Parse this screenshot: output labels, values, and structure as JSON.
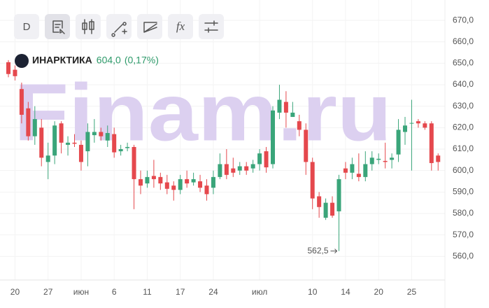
{
  "toolbar": {
    "period": "D",
    "function": "fx"
  },
  "chart_data": {
    "type": "candlestick",
    "ticker": "ИНАРКТИКА",
    "price": "604,0",
    "change": "(0,17%)",
    "watermark": "Finam.ru",
    "categories": [
      null,
      "20",
      null,
      null,
      null,
      null,
      "27",
      null,
      null,
      null,
      null,
      "июн",
      null,
      null,
      null,
      null,
      "6",
      null,
      null,
      null,
      null,
      "11",
      null,
      null,
      null,
      null,
      "17",
      null,
      null,
      null,
      null,
      "24",
      null,
      null,
      null,
      null,
      null,
      null,
      "июл",
      null,
      null,
      null,
      null,
      null,
      null,
      null,
      "10",
      null,
      null,
      null,
      null,
      "14",
      null,
      null,
      null,
      null,
      "20",
      null,
      null,
      null,
      null,
      "25",
      null,
      null,
      null,
      null
    ],
    "open": [
      650.5,
      647,
      638,
      629,
      616,
      620,
      604,
      607,
      622,
      612,
      613,
      612,
      609,
      616.5,
      618,
      614,
      617,
      609,
      610.5,
      611,
      596,
      594,
      597.5,
      597,
      594.5,
      593,
      591,
      596,
      594.5,
      595,
      593,
      592,
      597,
      603,
      601,
      600,
      602,
      601,
      603,
      609,
      603,
      627,
      632,
      625,
      623,
      619,
      604,
      588,
      578,
      585,
      581,
      601,
      599,
      598.5,
      597,
      603,
      605,
      604.5,
      605,
      607.5,
      618,
      622,
      623,
      622,
      622,
      607
    ],
    "high": [
      651.5,
      649,
      641,
      632,
      630,
      624,
      613,
      623,
      623,
      616,
      617,
      614,
      622,
      624,
      620,
      621,
      620,
      612,
      613,
      612,
      600,
      600,
      605,
      599,
      598,
      595,
      598,
      600,
      599,
      598,
      596,
      600,
      608,
      610,
      606,
      604,
      604,
      605,
      610,
      611,
      630,
      640,
      637,
      632,
      626,
      622,
      606,
      590,
      587,
      588,
      598,
      604,
      606,
      608,
      609,
      609,
      608,
      613,
      608,
      624,
      625,
      633,
      624,
      623,
      623,
      608
    ],
    "low": [
      643.5,
      642,
      622,
      614,
      612,
      602,
      596,
      603,
      608,
      607,
      611,
      600,
      602,
      613,
      614,
      611,
      606,
      607,
      609,
      582,
      589,
      592,
      592,
      591,
      589,
      586,
      589,
      592,
      593,
      590,
      586,
      589,
      596,
      596,
      597,
      598,
      598,
      599,
      600,
      599,
      601,
      624,
      620,
      625,
      616,
      598,
      582,
      578,
      577,
      578,
      562.5,
      596,
      596,
      595,
      595,
      600,
      603,
      601,
      601,
      604,
      612,
      600,
      620,
      619,
      600,
      600
    ],
    "close": [
      645,
      644,
      626,
      616,
      624,
      606,
      607,
      621,
      613,
      613,
      612.5,
      604,
      618,
      618,
      616,
      617.5,
      608.5,
      610,
      611,
      596,
      593,
      597,
      596,
      594,
      591.5,
      591,
      596,
      594,
      596,
      592,
      589,
      597,
      603,
      598,
      599,
      602,
      600,
      603,
      608,
      601.5,
      628,
      633,
      627,
      627,
      619,
      604,
      587,
      583,
      585,
      579,
      596,
      599,
      603,
      597,
      603,
      606,
      605.5,
      604,
      606,
      619,
      621,
      622.2,
      622,
      620,
      603.5,
      604
    ],
    "up_color": "#3aa57a",
    "down_color": "#e5484d",
    "ylim": [
      549,
      679.5
    ],
    "yticks": [
      {
        "value": 560,
        "label": "560,0"
      },
      {
        "value": 570,
        "label": "570,0"
      },
      {
        "value": 580,
        "label": "580,0"
      },
      {
        "value": 590,
        "label": "590,0"
      },
      {
        "value": 600,
        "label": "600,0"
      },
      {
        "value": 610,
        "label": "610,0"
      },
      {
        "value": 620,
        "label": "620,0"
      },
      {
        "value": 630,
        "label": "630,0"
      },
      {
        "value": 640,
        "label": "640,0"
      },
      {
        "value": 650,
        "label": "650,0"
      },
      {
        "value": 660,
        "label": "660,0"
      },
      {
        "value": 670,
        "label": "670,0"
      }
    ],
    "annotation": {
      "value": 562.5,
      "label": "562,5",
      "index": 50
    },
    "grid": true
  }
}
